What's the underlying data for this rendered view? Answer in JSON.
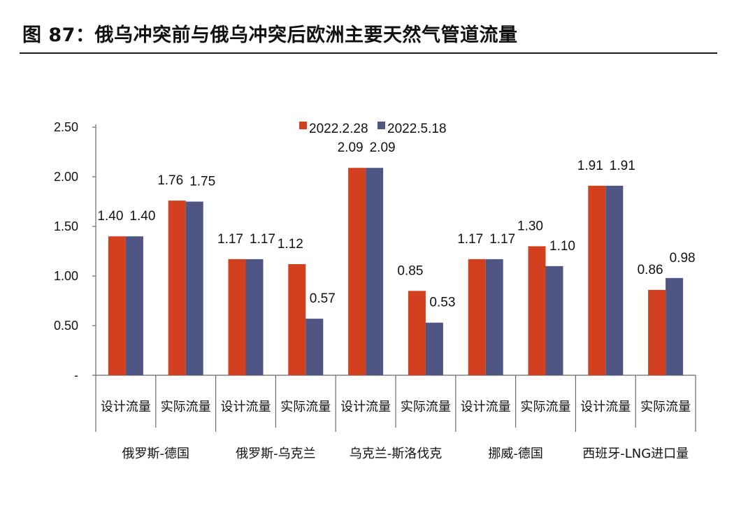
{
  "figure": {
    "title": "图 87：俄乌冲突前与俄乌冲突后欧洲主要天然气管道流量"
  },
  "chart_data": {
    "type": "bar",
    "title": "",
    "xlabel": "",
    "ylabel": "",
    "ylim": [
      0,
      2.5
    ],
    "yticks": [
      {
        "value": 0,
        "label": "-"
      },
      {
        "value": 0.5,
        "label": "0.50"
      },
      {
        "value": 1.0,
        "label": "1.00"
      },
      {
        "value": 1.5,
        "label": "1.50"
      },
      {
        "value": 2.0,
        "label": "2.00"
      },
      {
        "value": 2.5,
        "label": "2.50"
      }
    ],
    "grid": false,
    "legend_position": "top-center",
    "groups": [
      "俄罗斯-德国",
      "俄罗斯-乌克兰",
      "乌克兰-斯洛伐克",
      "挪威-德国",
      "西班牙-LNG进口量"
    ],
    "categories": [
      "设计流量",
      "实际流量",
      "设计流量",
      "实际流量",
      "设计流量",
      "实际流量",
      "设计流量",
      "实际流量",
      "设计流量",
      "实际流量"
    ],
    "series": [
      {
        "name": "2022.2.28",
        "color": "#d2401f",
        "values": [
          1.4,
          1.76,
          1.17,
          1.12,
          2.09,
          0.85,
          1.17,
          1.3,
          1.91,
          0.86
        ]
      },
      {
        "name": "2022.5.18",
        "color": "#4f5683",
        "values": [
          1.4,
          1.75,
          1.17,
          0.57,
          2.09,
          0.53,
          1.17,
          1.1,
          1.91,
          0.98
        ]
      }
    ]
  }
}
